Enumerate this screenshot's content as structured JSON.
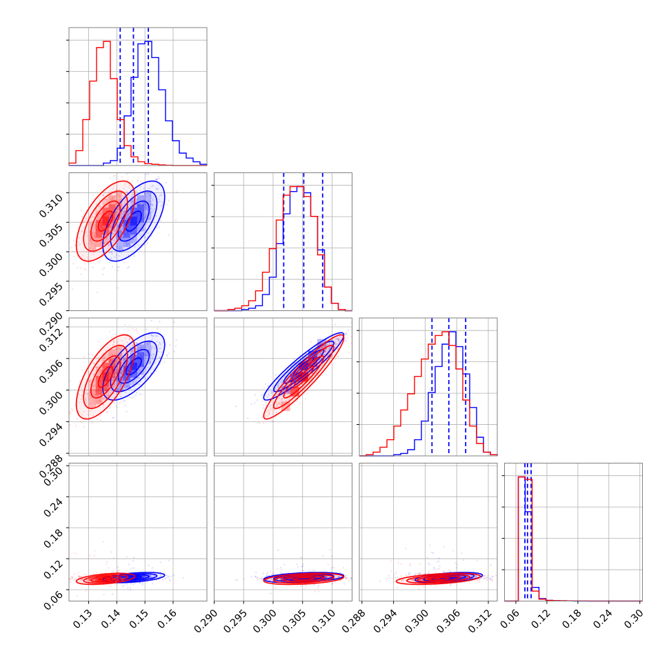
{
  "colors": {
    "series_a": "#0000ff",
    "series_b": "#ff0000",
    "grid": "#b0b0b0",
    "frame": "#808080"
  },
  "chart_data": {
    "type": "corner",
    "grid": true,
    "params": [
      {
        "range": [
          0.123,
          0.172
        ],
        "ticks": [
          0.13,
          0.14,
          0.15,
          0.16
        ],
        "tick_labels": [
          "0.13",
          "0.14",
          "0.15",
          "0.16"
        ]
      },
      {
        "range": [
          0.29,
          0.3134
        ],
        "ticks": [
          0.29,
          0.295,
          0.3,
          0.305,
          0.31
        ],
        "tick_labels": [
          "0.290",
          "0.295",
          "0.300",
          "0.305",
          "0.310"
        ]
      },
      {
        "range": [
          0.2875,
          0.3137
        ],
        "ticks": [
          0.288,
          0.294,
          0.3,
          0.306,
          0.312
        ],
        "tick_labels": [
          "0.288",
          "0.294",
          "0.300",
          "0.306",
          "0.312"
        ]
      },
      {
        "range": [
          0.038,
          0.305
        ],
        "ticks": [
          0.06,
          0.12,
          0.18,
          0.24,
          0.3
        ],
        "tick_labels": [
          "0.06",
          "0.12",
          "0.18",
          "0.24",
          "0.30"
        ]
      }
    ],
    "series": [
      {
        "color": "#0000ff",
        "quantile_lines": [
          [
            0.1412,
            0.1459,
            0.1512
          ],
          [
            0.3018,
            0.3052,
            0.3084
          ],
          [
            0.3013,
            0.3045,
            0.3077
          ],
          [
            0.0775,
            0.0825,
            0.0895
          ]
        ],
        "means": [
          0.146,
          0.3052,
          0.3045,
          0.0835
        ],
        "sds": [
          0.0055,
          0.0034,
          0.0032,
          0.011
        ],
        "hist": [
          {
            "edges": [
              0.123,
              0.172
            ],
            "counts": [
              0,
              0,
              0,
              0,
              0,
              2,
              4,
              14,
              40,
              71,
              98,
              100,
              87,
              61,
              36,
              20,
              10,
              6,
              3,
              1
            ]
          },
          {
            "edges": [
              0.29,
              0.3134
            ],
            "counts": [
              0,
              0,
              0,
              0,
              1,
              2,
              4,
              13,
              27,
              54,
              78,
              96,
              100,
              95,
              76,
              49,
              19,
              6,
              1,
              0
            ]
          },
          {
            "edges": [
              0.2875,
              0.3137
            ],
            "counts": [
              0,
              0,
              0,
              0,
              0,
              1,
              2,
              5,
              13,
              28,
              51,
              72,
              90,
              100,
              88,
              66,
              39,
              15,
              3,
              1
            ]
          },
          {
            "edges": [
              0.038,
              0.305
            ],
            "counts": [
              0,
              0,
              100,
              72,
              11,
              2,
              0.6,
              0.3,
              0.2,
              0.1,
              0,
              0,
              0,
              0,
              0,
              0,
              0,
              0,
              0,
              0
            ]
          }
        ]
      },
      {
        "color": "#ff0000",
        "quantile_lines": [],
        "means": [
          0.136,
          0.3052,
          0.3025,
          0.081
        ],
        "sds": [
          0.0052,
          0.0034,
          0.004,
          0.012
        ],
        "hist": [
          {
            "edges": [
              0.123,
              0.172
            ],
            "counts": [
              2,
              12,
              37,
              68,
              95,
              100,
              70,
              37,
              16,
              7,
              3,
              1.5,
              1,
              0.5,
              0.2,
              0,
              0,
              0,
              0,
              0
            ]
          },
          {
            "edges": [
              0.29,
              0.3134
            ],
            "counts": [
              0,
              0,
              1,
              2,
              4,
              8,
              16,
              31,
              50,
              73,
              93,
              100,
              100,
              92,
              76,
              45,
              19,
              6,
              1,
              0
            ]
          },
          {
            "edges": [
              0.2875,
              0.3137
            ],
            "counts": [
              0,
              1,
              3,
              7,
              13,
              24,
              37,
              50,
              64,
              78,
              90,
              97,
              100,
              89,
              70,
              45,
              24,
              10,
              3,
              1
            ]
          },
          {
            "edges": [
              0.038,
              0.305
            ],
            "counts": [
              0,
              0,
              100,
              98,
              8,
              1.5,
              0.5,
              0.3,
              0.2,
              0.1,
              0.1,
              0.1,
              0,
              0,
              0,
              0,
              0,
              0,
              0,
              0
            ]
          }
        ]
      }
    ],
    "correlations": {
      "0-1": 0.6,
      "0-2": 0.65,
      "1-2": 0.93,
      "0-3": 0.45,
      "1-3": 0.35,
      "2-3": 0.45
    }
  }
}
